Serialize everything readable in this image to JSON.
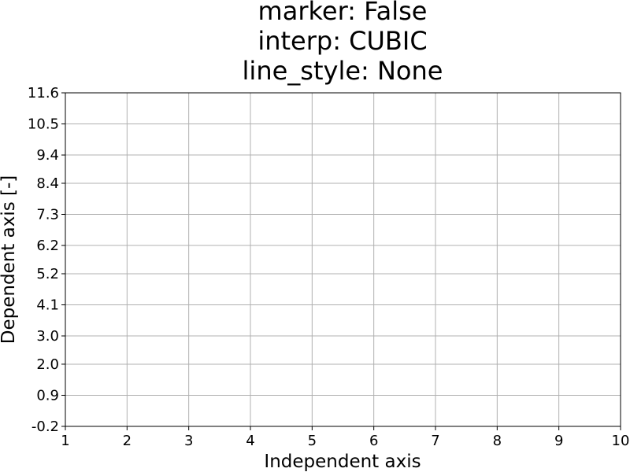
{
  "chart_data": {
    "type": "line",
    "title_lines": [
      "marker: False",
      "interp: CUBIC",
      "line_style: None"
    ],
    "xlabel": "Independent axis",
    "ylabel": "Dependent axis [-]",
    "xlim": [
      1,
      10
    ],
    "ylim": [
      -0.2,
      11.6
    ],
    "xticks": [
      "1",
      "2",
      "3",
      "4",
      "5",
      "6",
      "7",
      "8",
      "9",
      "10"
    ],
    "yticks": [
      "-0.2",
      "0.9",
      "2.0",
      "3.0",
      "4.1",
      "5.2",
      "6.2",
      "7.3",
      "8.4",
      "9.4",
      "10.5",
      "11.6"
    ],
    "grid": true,
    "series": []
  }
}
